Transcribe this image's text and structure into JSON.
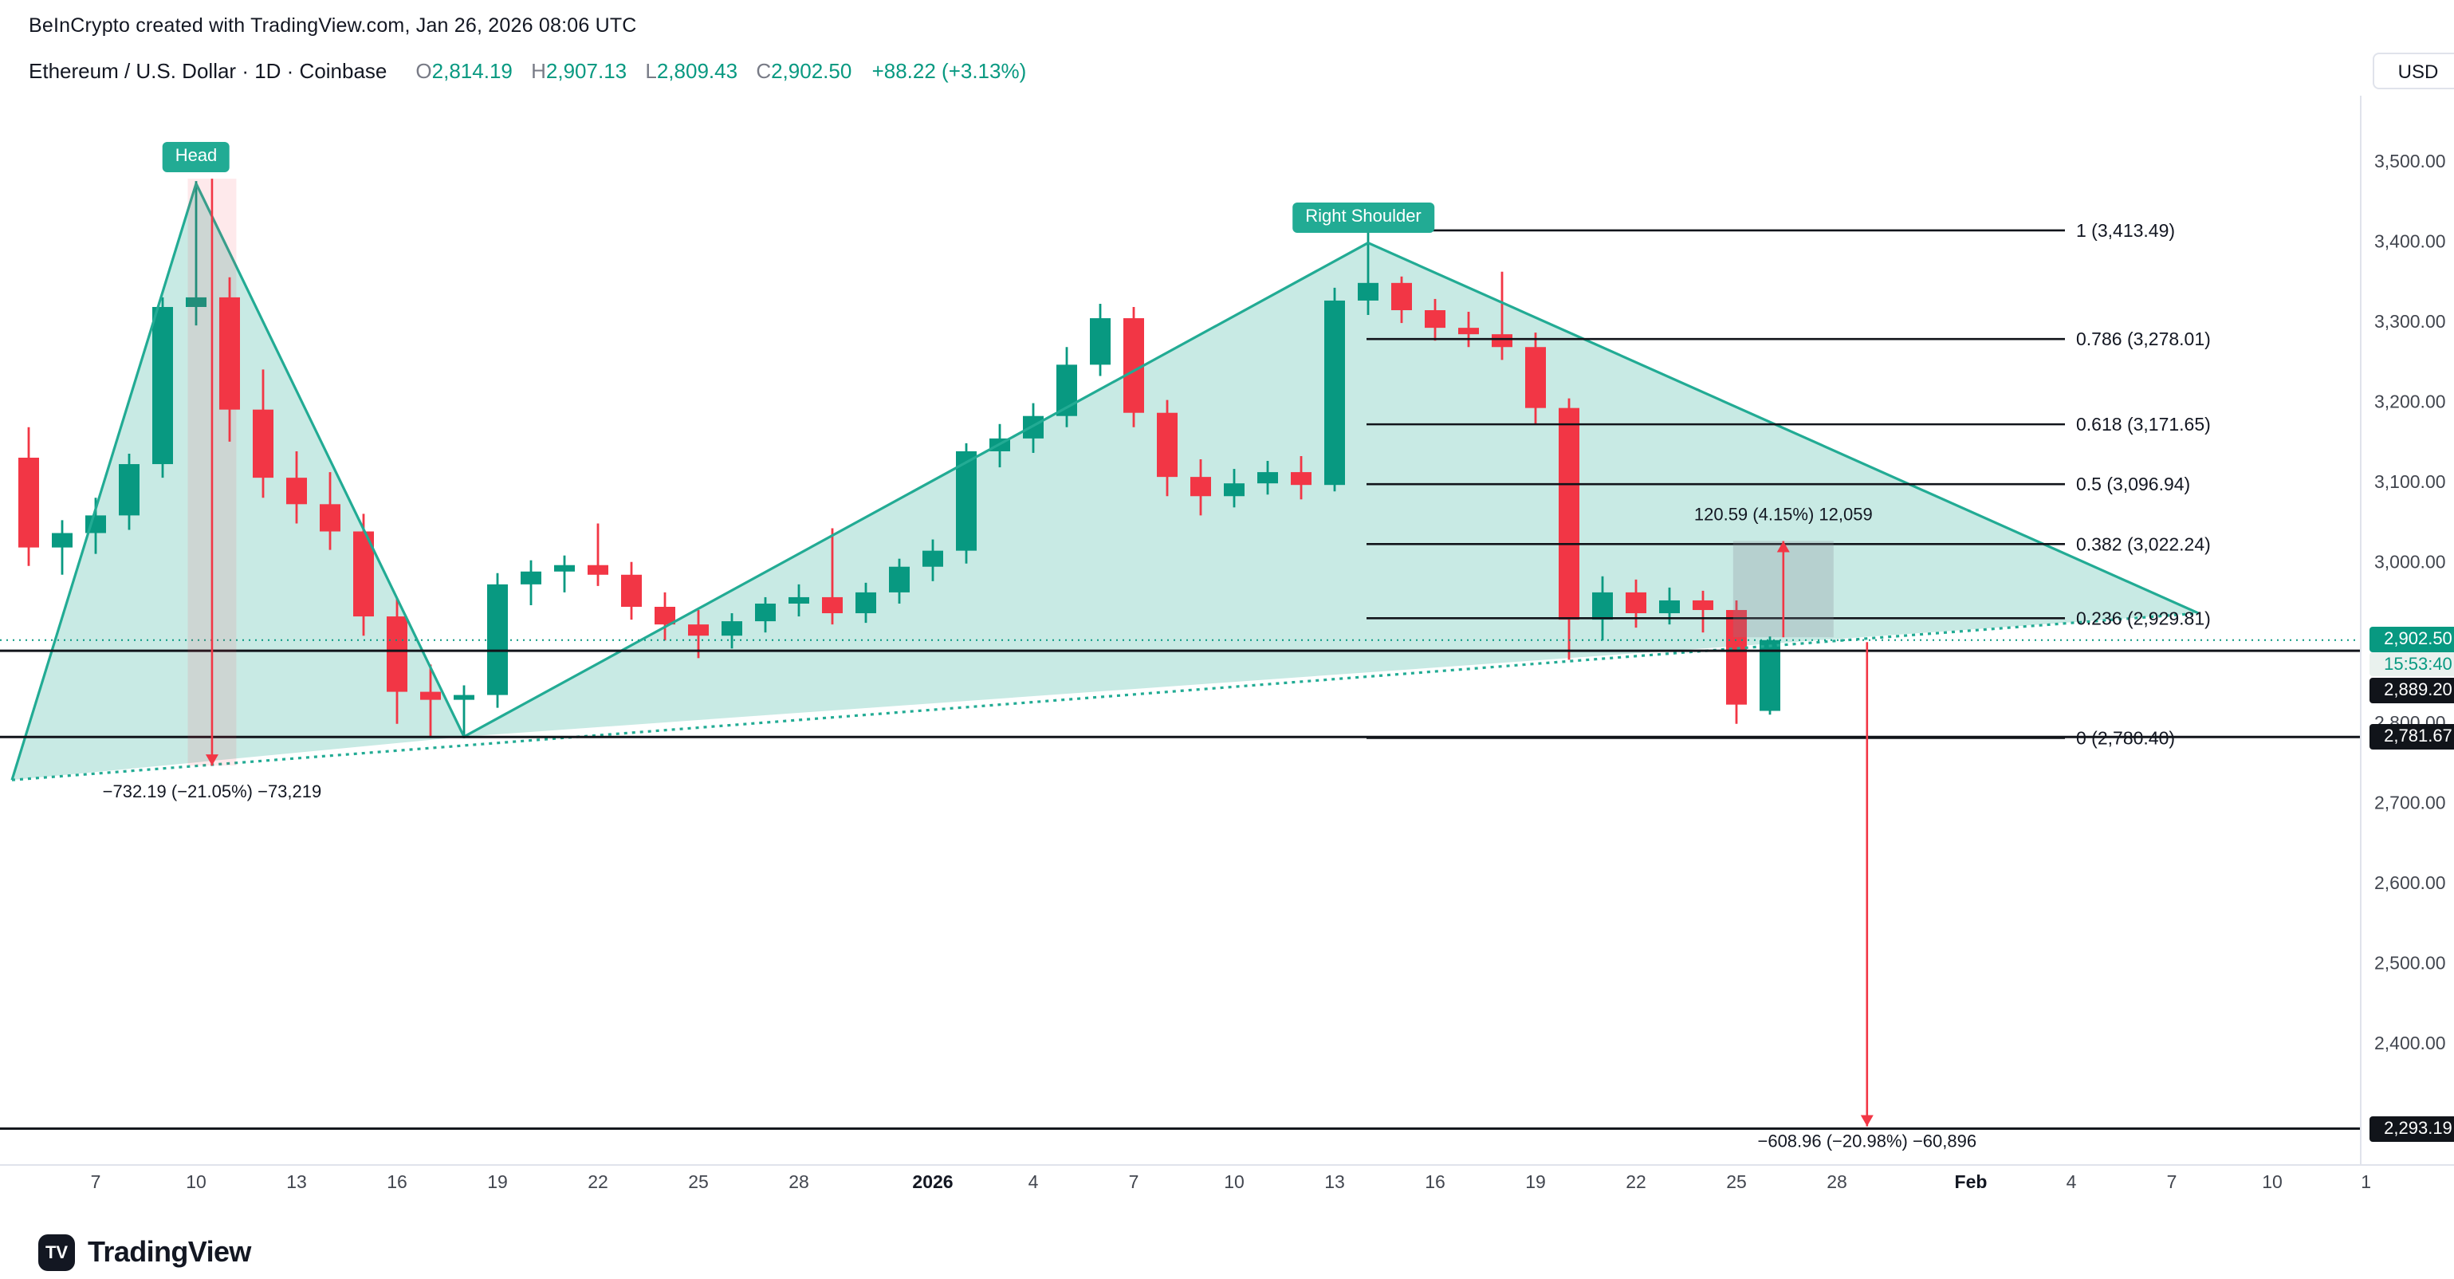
{
  "attribution": "BeInCrypto created with TradingView.com, Jan 26, 2026 08:06 UTC",
  "toolbar": {
    "currency_label": "USD"
  },
  "header": {
    "symbol_title": "Ethereum / U.S. Dollar · 1D · Coinbase",
    "ohlc": {
      "open_letter": "O",
      "open": "2,814.19",
      "high_letter": "H",
      "high": "2,907.13",
      "low_letter": "L",
      "low": "2,809.43",
      "close_letter": "C",
      "close": "2,902.50",
      "change": "+88.22 (+3.13%)"
    }
  },
  "logo": {
    "brand": "TradingView",
    "monogram": "TV"
  },
  "colors": {
    "up": "#089981",
    "down": "#f23645",
    "pattern": "#22ab94",
    "pattern_fill": "rgba(34,171,148,0.25)",
    "line_black": "#11141a",
    "text_dark": "#131722",
    "text_gray": "#787b86",
    "measure_red": "#f23645",
    "measure_red_fill": "rgba(242,54,69,0.11)",
    "measure_gray_fill": "rgba(129,133,143,0.25)",
    "axis_text": "#42464f",
    "separator": "#e0e3eb",
    "badge_black": "#11141a",
    "countdown_bg": "#e9f1ee"
  },
  "chart_data": {
    "type": "candlestick",
    "symbol": "Ethereum / U.S. Dollar",
    "exchange": "Coinbase",
    "interval": "1D",
    "current": {
      "open": 2814.19,
      "high": 2907.13,
      "low": 2809.43,
      "close": 2902.5,
      "change": 88.22,
      "change_pct": 3.13
    },
    "price_axis_range": [
      2250,
      3550
    ],
    "candles_ohlc": [
      [
        3130,
        3168,
        2995,
        3018
      ],
      [
        3018,
        3052,
        2984,
        3036
      ],
      [
        3036,
        3080,
        3010,
        3058
      ],
      [
        3058,
        3135,
        3040,
        3122
      ],
      [
        3122,
        3330,
        3105,
        3318
      ],
      [
        3318,
        3475,
        3295,
        3330
      ],
      [
        3330,
        3355,
        3150,
        3190
      ],
      [
        3190,
        3240,
        3080,
        3105
      ],
      [
        3105,
        3138,
        3048,
        3072
      ],
      [
        3072,
        3112,
        3015,
        3038
      ],
      [
        3038,
        3060,
        2908,
        2932
      ],
      [
        2932,
        2955,
        2798,
        2838
      ],
      [
        2838,
        2872,
        2782,
        2828
      ],
      [
        2828,
        2846,
        2780,
        2834
      ],
      [
        2834,
        2986,
        2818,
        2972
      ],
      [
        2972,
        3002,
        2946,
        2988
      ],
      [
        2988,
        3008,
        2962,
        2996
      ],
      [
        2996,
        3048,
        2970,
        2984
      ],
      [
        2984,
        3000,
        2928,
        2944
      ],
      [
        2944,
        2962,
        2902,
        2922
      ],
      [
        2922,
        2940,
        2880,
        2908
      ],
      [
        2908,
        2936,
        2892,
        2926
      ],
      [
        2926,
        2956,
        2912,
        2948
      ],
      [
        2948,
        2972,
        2932,
        2956
      ],
      [
        2956,
        3042,
        2922,
        2936
      ],
      [
        2936,
        2974,
        2924,
        2962
      ],
      [
        2962,
        3004,
        2948,
        2994
      ],
      [
        2994,
        3028,
        2976,
        3014
      ],
      [
        3014,
        3148,
        2998,
        3138
      ],
      [
        3138,
        3172,
        3118,
        3154
      ],
      [
        3154,
        3198,
        3136,
        3182
      ],
      [
        3182,
        3268,
        3168,
        3246
      ],
      [
        3246,
        3322,
        3232,
        3304
      ],
      [
        3304,
        3318,
        3168,
        3186
      ],
      [
        3186,
        3202,
        3082,
        3106
      ],
      [
        3106,
        3128,
        3058,
        3082
      ],
      [
        3082,
        3116,
        3068,
        3098
      ],
      [
        3098,
        3126,
        3084,
        3112
      ],
      [
        3112,
        3132,
        3078,
        3096
      ],
      [
        3096,
        3342,
        3088,
        3326
      ],
      [
        3326,
        3413,
        3308,
        3348
      ],
      [
        3348,
        3356,
        3298,
        3314
      ],
      [
        3314,
        3328,
        3276,
        3292
      ],
      [
        3292,
        3312,
        3268,
        3284
      ],
      [
        3284,
        3362,
        3252,
        3268
      ],
      [
        3268,
        3286,
        3172,
        3192
      ],
      [
        3192,
        3204,
        2878,
        2928
      ],
      [
        2928,
        2982,
        2902,
        2962
      ],
      [
        2962,
        2978,
        2918,
        2936
      ],
      [
        2936,
        2968,
        2922,
        2952
      ],
      [
        2952,
        2964,
        2912,
        2940
      ],
      [
        2940,
        2952,
        2798,
        2822
      ],
      [
        2814.19,
        2907.13,
        2809.43,
        2902.5
      ]
    ],
    "price_axis_ticks": [
      {
        "label": "3,500.00",
        "price": 3500
      },
      {
        "label": "3,400.00",
        "price": 3400
      },
      {
        "label": "3,300.00",
        "price": 3300
      },
      {
        "label": "3,200.00",
        "price": 3200
      },
      {
        "label": "3,100.00",
        "price": 3100
      },
      {
        "label": "3,000.00",
        "price": 3000
      },
      {
        "label": "2,800.00",
        "price": 2800
      },
      {
        "label": "2,700.00",
        "price": 2700
      },
      {
        "label": "2,600.00",
        "price": 2600
      },
      {
        "label": "2,500.00",
        "price": 2500
      },
      {
        "label": "2,400.00",
        "price": 2400
      }
    ],
    "time_axis_ticks": [
      {
        "label": "7",
        "bar": 2
      },
      {
        "label": "10",
        "bar": 5
      },
      {
        "label": "13",
        "bar": 8
      },
      {
        "label": "16",
        "bar": 11
      },
      {
        "label": "19",
        "bar": 14
      },
      {
        "label": "22",
        "bar": 17
      },
      {
        "label": "25",
        "bar": 20
      },
      {
        "label": "28",
        "bar": 23
      },
      {
        "label": "2026",
        "bar": 27,
        "bold": true
      },
      {
        "label": "4",
        "bar": 30
      },
      {
        "label": "7",
        "bar": 33
      },
      {
        "label": "10",
        "bar": 36
      },
      {
        "label": "13",
        "bar": 39
      },
      {
        "label": "16",
        "bar": 42
      },
      {
        "label": "19",
        "bar": 45
      },
      {
        "label": "22",
        "bar": 48
      },
      {
        "label": "25",
        "bar": 51
      },
      {
        "label": "28",
        "bar": 54
      },
      {
        "label": "Feb",
        "bar": 58,
        "bold": true
      },
      {
        "label": "4",
        "bar": 61
      },
      {
        "label": "7",
        "bar": 64
      },
      {
        "label": "10",
        "bar": 67
      },
      {
        "label": "1",
        "bar": 69.8
      }
    ]
  },
  "annotations": {
    "head_label": "Head",
    "right_shoulder_label": "Right Shoulder",
    "pattern_points": {
      "start": {
        "bar": -0.5,
        "price": 2728
      },
      "head": {
        "bar": 5,
        "price": 3472
      },
      "trough": {
        "bar": 13,
        "price": 2782
      },
      "right_shoulder": {
        "bar": 40,
        "price": 3398
      },
      "end": {
        "bar": 64.8,
        "price": 2936
      }
    },
    "fib_levels": [
      {
        "label": "1 (3,413.49)",
        "price": 3413.49
      },
      {
        "label": "0.786 (3,278.01)",
        "price": 3278.01
      },
      {
        "label": "0.618 (3,171.65)",
        "price": 3171.65
      },
      {
        "label": "0.5 (3,096.94)",
        "price": 3096.94
      },
      {
        "label": "0.382 (3,022.24)",
        "price": 3022.24
      },
      {
        "label": "0.236 (2,929.81)",
        "price": 2929.81
      },
      {
        "label": "0 (2,780.40)",
        "price": 2780.4
      }
    ],
    "horizontal_lines": [
      {
        "price": 2889.2,
        "label": "2,889.20"
      },
      {
        "price": 2781.67,
        "label": "2,781.67"
      },
      {
        "price": 2293.19,
        "label": "2,293.19"
      }
    ],
    "current_price_line": {
      "price": 2902.5,
      "label": "2,902.50",
      "countdown": "15:53:40"
    },
    "measures": [
      {
        "id": "head-drop",
        "label": "−732.19 (−21.05%) −73,219",
        "bar_from": 4.75,
        "bar_to": 6.2,
        "price_from": 3478,
        "price_to": 2746,
        "direction": "down",
        "box": "red",
        "label_dy": 20
      },
      {
        "id": "retrace-up",
        "label": "120.59 (4.15%) 12,059",
        "bar_from": 50.9,
        "bar_to": 53.9,
        "price_from": 2906,
        "price_to": 3026,
        "direction": "up",
        "box": "gray",
        "label_dy": -13
      },
      {
        "id": "target-drop",
        "label": "−608.96 (−20.98%) −60,896",
        "bar_from": 54.9,
        "bar_to": 54.9,
        "price_from": 2900,
        "price_to": 2296,
        "direction": "down",
        "box": "none",
        "label_dy": 13
      }
    ]
  }
}
